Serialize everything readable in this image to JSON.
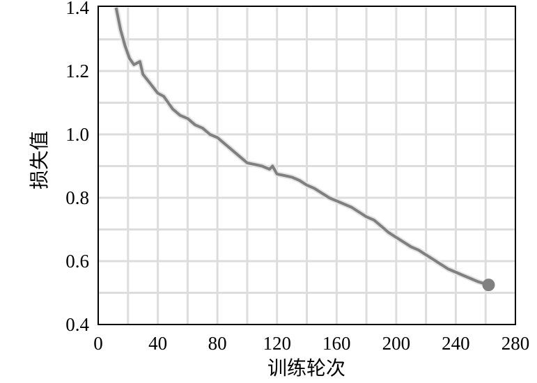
{
  "chart_data": {
    "type": "line",
    "title": "",
    "xlabel": "训练轮次",
    "ylabel": "损失值",
    "xlim": [
      0,
      280
    ],
    "ylim": [
      0.4,
      1.4
    ],
    "xticks": [
      0,
      40,
      80,
      120,
      160,
      200,
      240,
      280
    ],
    "yticks": [
      0.4,
      0.6,
      0.8,
      1.0,
      1.2,
      1.4
    ],
    "xtick_labels": [
      "0",
      "40",
      "80",
      "120",
      "160",
      "200",
      "240",
      "280"
    ],
    "ytick_labels": [
      "0.4",
      "0.6",
      "0.8",
      "1.0",
      "1.2",
      "1.4"
    ],
    "grid": true,
    "grid_x_step": 20,
    "grid_y_step": 0.1,
    "line_color": "#808080",
    "grid_color": "#dddddd",
    "end_marker": true,
    "series": [
      {
        "x": [
          12,
          15,
          18,
          21,
          24,
          28,
          30,
          35,
          40,
          44,
          50,
          55,
          60,
          65,
          70,
          75,
          80,
          85,
          90,
          95,
          100,
          105,
          110,
          115,
          117,
          120,
          125,
          130,
          135,
          140,
          145,
          150,
          155,
          160,
          165,
          170,
          175,
          180,
          185,
          190,
          195,
          200,
          205,
          210,
          215,
          220,
          225,
          230,
          235,
          240,
          245,
          250,
          255,
          262
        ],
        "y": [
          1.4,
          1.33,
          1.28,
          1.24,
          1.22,
          1.23,
          1.19,
          1.16,
          1.13,
          1.12,
          1.08,
          1.06,
          1.05,
          1.03,
          1.02,
          1.0,
          0.99,
          0.97,
          0.95,
          0.93,
          0.91,
          0.905,
          0.9,
          0.89,
          0.9,
          0.875,
          0.87,
          0.865,
          0.855,
          0.84,
          0.83,
          0.815,
          0.8,
          0.79,
          0.78,
          0.77,
          0.755,
          0.74,
          0.73,
          0.71,
          0.69,
          0.675,
          0.66,
          0.645,
          0.635,
          0.62,
          0.605,
          0.59,
          0.575,
          0.565,
          0.555,
          0.545,
          0.535,
          0.525
        ]
      }
    ]
  }
}
